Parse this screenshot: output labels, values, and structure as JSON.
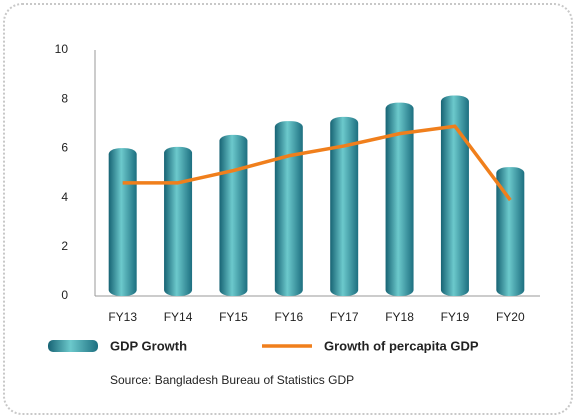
{
  "chart_data": {
    "type": "bar",
    "categories": [
      "FY13",
      "FY14",
      "FY15",
      "FY16",
      "FY17",
      "FY18",
      "FY19",
      "FY20"
    ],
    "series": [
      {
        "name": "GDP Growth",
        "type": "bar",
        "color": "#2a8a9a",
        "values": [
          6.01,
          6.06,
          6.55,
          7.11,
          7.28,
          7.86,
          8.15,
          5.24
        ]
      },
      {
        "name": "Growth of percapita GDP",
        "type": "line",
        "color": "#f07f1c",
        "values": [
          4.6,
          4.6,
          5.1,
          5.7,
          6.1,
          6.6,
          6.9,
          3.9
        ]
      }
    ],
    "ylim": [
      0,
      10
    ],
    "yticks": [
      0,
      2,
      4,
      6,
      8,
      10
    ],
    "source": "Source: Bangladesh Bureau of Statistics GDP"
  }
}
